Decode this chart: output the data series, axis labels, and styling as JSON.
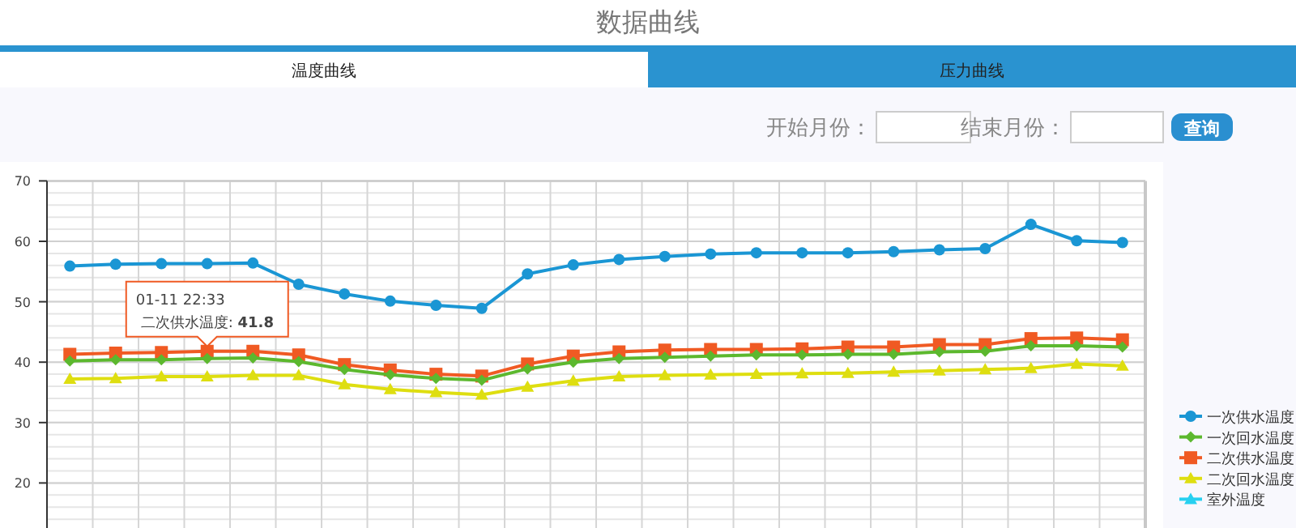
{
  "chart_data": {
    "type": "line",
    "title": "数据曲线",
    "categories": [
      null,
      null,
      null,
      null,
      null,
      null,
      null,
      null,
      null,
      null,
      null,
      null,
      null,
      null,
      null,
      null,
      null,
      null,
      null,
      null,
      null,
      null,
      null,
      null
    ],
    "series": [
      {
        "name": "一次供水温度",
        "color": "#1a96d4",
        "marker": "circle",
        "values": [
          55.9,
          56.2,
          56.3,
          56.3,
          56.4,
          52.9,
          51.3,
          50.1,
          49.4,
          48.9,
          54.6,
          56.1,
          57.0,
          57.5,
          57.9,
          58.1,
          58.1,
          58.1,
          58.3,
          58.6,
          58.8,
          62.8,
          60.1,
          59.8
        ]
      },
      {
        "name": "一次回水温度",
        "color": "#5cb82e",
        "marker": "diamond",
        "values": [
          40.2,
          40.4,
          40.4,
          40.6,
          40.7,
          40.1,
          38.8,
          37.9,
          37.3,
          37.0,
          38.9,
          40.0,
          40.6,
          40.8,
          41.0,
          41.2,
          41.2,
          41.3,
          41.3,
          41.7,
          41.8,
          42.7,
          42.7,
          42.5
        ]
      },
      {
        "name": "二次供水温度",
        "color": "#f05a23",
        "marker": "square",
        "values": [
          41.3,
          41.5,
          41.6,
          41.8,
          41.8,
          41.2,
          39.6,
          38.7,
          38.0,
          37.7,
          39.7,
          41.0,
          41.7,
          42.0,
          42.1,
          42.1,
          42.2,
          42.5,
          42.5,
          42.9,
          42.9,
          43.9,
          44.0,
          43.7
        ]
      },
      {
        "name": "二次回水温度",
        "color": "#dede10",
        "marker": "triangle",
        "values": [
          37.2,
          37.3,
          37.6,
          37.6,
          37.8,
          37.8,
          36.3,
          35.5,
          35.0,
          34.6,
          35.9,
          36.9,
          37.6,
          37.8,
          37.9,
          38.0,
          38.1,
          38.2,
          38.4,
          38.6,
          38.8,
          39.0,
          39.7,
          39.4
        ]
      },
      {
        "name": "室外温度",
        "color": "#27d0f0",
        "marker": "triangle",
        "values": [
          null,
          null,
          null,
          null,
          null,
          null,
          null,
          null,
          null,
          null,
          null,
          null,
          null,
          null,
          null,
          null,
          null,
          null,
          null,
          null,
          null,
          null,
          null,
          null
        ]
      }
    ],
    "ylim": [
      12.5,
      70
    ],
    "yticks": [
      20,
      30,
      40,
      50,
      60,
      70
    ],
    "grid": true,
    "legend": "right",
    "tick_labels": "y",
    "annotations": [
      {
        "text": "01-11 22:33\n二次供水温度: 41.8",
        "y": 41.8
      },
      "温度曲线",
      "压力曲线",
      "开始月份：",
      "结束月份：",
      "查询"
    ]
  }
}
